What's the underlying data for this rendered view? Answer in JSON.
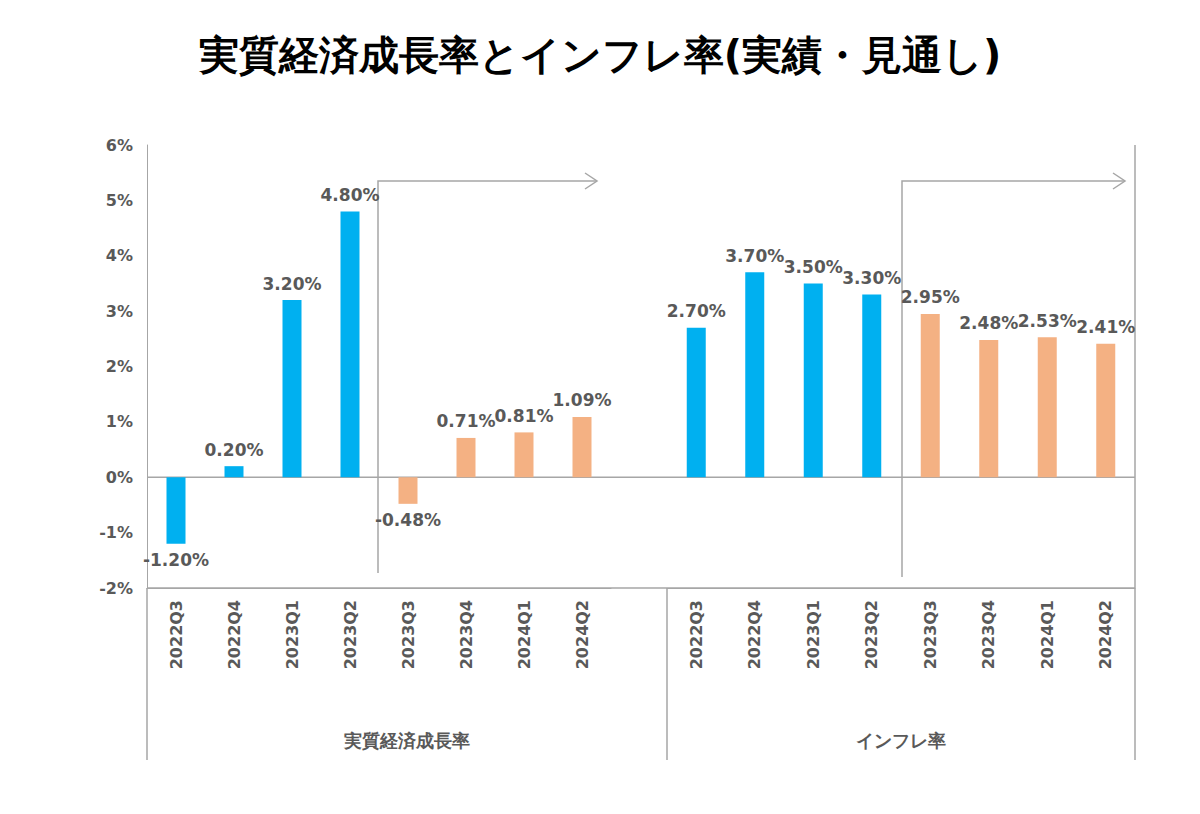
{
  "chart_data": {
    "type": "bar",
    "title": "実質経済成長率とインフレ率(実績・見通し)",
    "ylim": [
      -2,
      6
    ],
    "yticks": [
      {
        "value": -2,
        "label": "-2%"
      },
      {
        "value": -1,
        "label": "-1%"
      },
      {
        "value": 0,
        "label": "0%"
      },
      {
        "value": 1,
        "label": "1%"
      },
      {
        "value": 2,
        "label": "2%"
      },
      {
        "value": 3,
        "label": "3%"
      },
      {
        "value": 4,
        "label": "4%"
      },
      {
        "value": 5,
        "label": "5%"
      },
      {
        "value": 6,
        "label": "6%"
      }
    ],
    "grid": false,
    "data_labels": true,
    "groups": [
      {
        "name": "実質経済成長率",
        "categories": [
          "2022Q3",
          "2022Q4",
          "2023Q1",
          "2023Q2",
          "2023Q3",
          "2023Q4",
          "2024Q1",
          "2024Q2"
        ],
        "values": [
          -1.2,
          0.2,
          3.2,
          4.8,
          -0.48,
          0.71,
          0.81,
          1.09
        ],
        "value_labels": [
          "-1.20%",
          "0.20%",
          "3.20%",
          "4.80%",
          "-0.48%",
          "0.71%",
          "0.81%",
          "1.09%"
        ],
        "colors": [
          "#00b0f0",
          "#00b0f0",
          "#00b0f0",
          "#00b0f0",
          "#f4b183",
          "#f4b183",
          "#f4b183",
          "#f4b183"
        ]
      },
      {
        "name": "インフレ率",
        "categories": [
          "2022Q3",
          "2022Q4",
          "2023Q1",
          "2023Q2",
          "2023Q3",
          "2023Q4",
          "2024Q1",
          "2024Q2"
        ],
        "values": [
          2.7,
          3.7,
          3.5,
          3.3,
          2.95,
          2.48,
          2.53,
          2.41
        ],
        "value_labels": [
          "2.70%",
          "3.70%",
          "3.50%",
          "3.30%",
          "2.95%",
          "2.48%",
          "2.53%",
          "2.41%"
        ],
        "colors": [
          "#00b0f0",
          "#00b0f0",
          "#00b0f0",
          "#00b0f0",
          "#f4b183",
          "#f4b183",
          "#f4b183",
          "#f4b183"
        ]
      }
    ]
  }
}
